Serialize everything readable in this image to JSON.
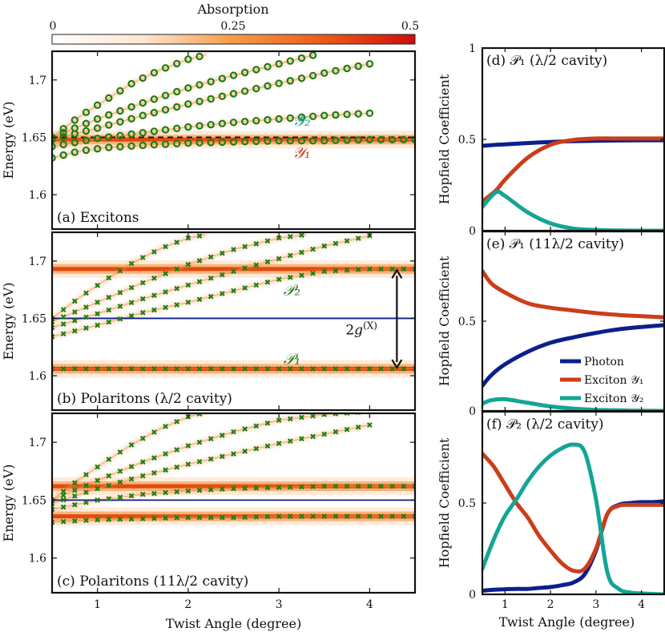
{
  "colorbar": {
    "title": "Absorption",
    "ticks": [
      "0",
      "0.25",
      "0.5"
    ],
    "range": [
      0,
      0.5
    ]
  },
  "colors": {
    "photon": "#0b1f8c",
    "exciton1": "#cc3d1a",
    "exciton2": "#13a596",
    "marker": "#1e7f12"
  },
  "chart_data": [
    {
      "type": "heatmap",
      "panel": "(a) Excitons",
      "xlabel": "",
      "ylabel": "Energy (eV)",
      "xlim": [
        0.5,
        4.5
      ],
      "ylim": [
        1.57,
        1.725
      ],
      "yticks": [
        "1.6",
        "1.65",
        "1.7"
      ],
      "bright_bands_eV": [
        1.648
      ],
      "dashed_line_eV": 1.65,
      "labels": [
        "𝒴₂",
        "𝒴₁"
      ],
      "series": [
        {
          "name": "𝒴₁",
          "x": [
            0.5,
            0.8,
            1.1,
            1.5,
            2.0,
            2.5,
            3.0,
            3.5,
            4.0,
            4.5
          ],
          "y": [
            1.632,
            1.638,
            1.641,
            1.643,
            1.645,
            1.646,
            1.647,
            1.647,
            1.648,
            1.648
          ]
        },
        {
          "x": [
            0.5,
            1.0,
            1.5,
            2.0,
            2.5,
            3.0,
            3.5,
            4.0
          ],
          "y": [
            1.642,
            1.649,
            1.654,
            1.659,
            1.663,
            1.666,
            1.669,
            1.671
          ]
        },
        {
          "x": [
            0.5,
            1.0,
            1.5,
            2.0,
            2.5,
            3.0,
            3.5,
            4.0
          ],
          "y": [
            1.648,
            1.658,
            1.669,
            1.679,
            1.688,
            1.697,
            1.706,
            1.714
          ]
        },
        {
          "x": [
            0.5,
            1.0,
            1.5,
            2.0,
            2.5,
            3.0,
            3.4
          ],
          "y": [
            1.65,
            1.666,
            1.68,
            1.693,
            1.704,
            1.714,
            1.722
          ]
        },
        {
          "x": [
            0.5,
            0.8,
            1.1,
            1.4,
            1.7,
            2.0,
            2.2
          ],
          "y": [
            1.65,
            1.668,
            1.683,
            1.698,
            1.709,
            1.718,
            1.722
          ]
        }
      ]
    },
    {
      "type": "heatmap",
      "panel": "(b) Polaritons (λ/2 cavity)",
      "xlabel": "",
      "ylabel": "Energy (eV)",
      "xlim": [
        0.5,
        4.5
      ],
      "ylim": [
        1.57,
        1.725
      ],
      "yticks": [
        "1.6",
        "1.65",
        "1.7"
      ],
      "bright_bands_eV": [
        1.606,
        1.693
      ],
      "photon_line_eV": 1.65,
      "annotation": "2g^(X)",
      "labels": [
        "𝒫₂",
        "𝒫₁"
      ],
      "series": [
        {
          "name": "𝒫₁",
          "x": [
            0.5,
            1.0,
            1.5,
            2.0,
            2.5,
            3.0,
            3.5,
            4.0,
            4.5
          ],
          "y": [
            1.606,
            1.606,
            1.606,
            1.606,
            1.606,
            1.606,
            1.606,
            1.606,
            1.606
          ]
        },
        {
          "name": "𝒫₂",
          "x": [
            0.5,
            1.0,
            1.5,
            2.0,
            2.5,
            3.0,
            3.5,
            4.0,
            4.5
          ],
          "y": [
            1.634,
            1.644,
            1.655,
            1.664,
            1.674,
            1.684,
            1.691,
            1.693,
            1.693
          ]
        },
        {
          "x": [
            0.5,
            1.0,
            1.5,
            2.0,
            2.5,
            3.0,
            3.5,
            4.0
          ],
          "y": [
            1.642,
            1.654,
            1.667,
            1.679,
            1.691,
            1.702,
            1.713,
            1.722
          ]
        },
        {
          "x": [
            0.5,
            1.0,
            1.5,
            2.0,
            2.5,
            3.0,
            3.3
          ],
          "y": [
            1.647,
            1.664,
            1.681,
            1.697,
            1.71,
            1.72,
            1.723
          ]
        },
        {
          "x": [
            0.5,
            0.8,
            1.1,
            1.4,
            1.7,
            2.0,
            2.2
          ],
          "y": [
            1.65,
            1.668,
            1.684,
            1.699,
            1.711,
            1.72,
            1.723
          ]
        }
      ]
    },
    {
      "type": "heatmap",
      "panel": "(c) Polaritons (11λ/2 cavity)",
      "xlabel": "Twist Angle (degree)",
      "ylabel": "Energy (eV)",
      "xlim": [
        0.5,
        4.5
      ],
      "ylim": [
        1.57,
        1.725
      ],
      "xticks": [
        "1",
        "2",
        "3",
        "4"
      ],
      "yticks": [
        "1.6",
        "1.65",
        "1.7"
      ],
      "bright_bands_eV": [
        1.636,
        1.662
      ],
      "photon_line_eV": 1.65,
      "series": [
        {
          "x": [
            0.5,
            1.0,
            1.5,
            2.0,
            2.5,
            3.0,
            3.5,
            4.0,
            4.5
          ],
          "y": [
            1.631,
            1.633,
            1.634,
            1.635,
            1.635,
            1.636,
            1.636,
            1.636,
            1.636
          ]
        },
        {
          "x": [
            0.5,
            1.0,
            1.5,
            2.0,
            2.5,
            3.0,
            3.5,
            4.0,
            4.5
          ],
          "y": [
            1.642,
            1.65,
            1.655,
            1.658,
            1.66,
            1.661,
            1.662,
            1.662,
            1.662
          ]
        },
        {
          "x": [
            0.5,
            1.0,
            1.5,
            2.0,
            2.5,
            3.0,
            3.5,
            4.0
          ],
          "y": [
            1.647,
            1.66,
            1.671,
            1.681,
            1.69,
            1.699,
            1.707,
            1.715
          ]
        },
        {
          "x": [
            0.5,
            1.0,
            1.5,
            2.0,
            2.5,
            3.0,
            3.5,
            3.9
          ],
          "y": [
            1.65,
            1.667,
            1.683,
            1.697,
            1.709,
            1.719,
            1.724,
            1.726
          ]
        },
        {
          "x": [
            0.5,
            0.8,
            1.1,
            1.4,
            1.7,
            2.0,
            2.2
          ],
          "y": [
            1.65,
            1.668,
            1.684,
            1.699,
            1.712,
            1.722,
            1.726
          ]
        }
      ]
    },
    {
      "type": "line",
      "panel": "(d) 𝒫₁ (λ/2 cavity)",
      "ylabel": "Hopfield Coefficient",
      "xlim": [
        0.5,
        4.5
      ],
      "ylim": [
        0,
        1
      ],
      "yticks": [
        "0",
        "0.5",
        "1"
      ],
      "x": [
        0.5,
        0.8,
        1.0,
        1.5,
        2.0,
        2.5,
        3.0,
        3.5,
        4.0,
        4.5
      ],
      "series": [
        {
          "name": "Photon",
          "values": [
            0.465,
            0.47,
            0.473,
            0.48,
            0.486,
            0.49,
            0.492,
            0.494,
            0.495,
            0.495
          ]
        },
        {
          "name": "Exciton 𝒴₁",
          "values": [
            0.16,
            0.22,
            0.28,
            0.4,
            0.47,
            0.497,
            0.505,
            0.505,
            0.505,
            0.505
          ]
        },
        {
          "name": "Exciton 𝒴₂",
          "values": [
            0.13,
            0.21,
            0.19,
            0.1,
            0.04,
            0.012,
            0.004,
            0.001,
            0.0,
            0.0
          ]
        }
      ]
    },
    {
      "type": "line",
      "panel": "(e) 𝒫₁ (11λ/2 cavity)",
      "ylabel": "Hopfield Coefficient",
      "xlim": [
        0.5,
        4.5
      ],
      "ylim": [
        0,
        1
      ],
      "yticks": [
        "0",
        "0.5"
      ],
      "legend": {
        "position": "bottom-right",
        "entries": [
          "Photon",
          "Exciton 𝒴₁",
          "Exciton 𝒴₂"
        ]
      },
      "x": [
        0.5,
        0.7,
        1.0,
        1.5,
        2.0,
        2.5,
        3.0,
        3.5,
        4.0,
        4.5
      ],
      "series": [
        {
          "name": "Photon",
          "values": [
            0.14,
            0.2,
            0.26,
            0.33,
            0.38,
            0.41,
            0.435,
            0.455,
            0.468,
            0.478
          ]
        },
        {
          "name": "Exciton 𝒴₁",
          "values": [
            0.78,
            0.71,
            0.66,
            0.6,
            0.575,
            0.56,
            0.545,
            0.535,
            0.528,
            0.522
          ]
        },
        {
          "name": "Exciton 𝒴₂",
          "values": [
            0.04,
            0.06,
            0.065,
            0.045,
            0.025,
            0.013,
            0.006,
            0.003,
            0.001,
            0.0
          ]
        }
      ]
    },
    {
      "type": "line",
      "panel": "(f) 𝒫₂ (λ/2 cavity)",
      "xlabel": "Twist Angle (degree)",
      "ylabel": "Hopfield Coefficient",
      "xlim": [
        0.5,
        4.5
      ],
      "ylim": [
        0,
        1
      ],
      "xticks": [
        "1",
        "2",
        "3",
        "4"
      ],
      "yticks": [
        "0",
        "0.5"
      ],
      "x": [
        0.5,
        0.75,
        1.0,
        1.25,
        1.5,
        1.75,
        2.0,
        2.25,
        2.5,
        2.75,
        3.0,
        3.25,
        3.5,
        3.75,
        4.0,
        4.25,
        4.5
      ],
      "series": [
        {
          "name": "Photon",
          "values": [
            0.02,
            0.025,
            0.028,
            0.03,
            0.03,
            0.035,
            0.04,
            0.05,
            0.065,
            0.11,
            0.24,
            0.44,
            0.49,
            0.5,
            0.505,
            0.505,
            0.51
          ]
        },
        {
          "name": "Exciton 𝒴₁",
          "values": [
            0.77,
            0.7,
            0.6,
            0.5,
            0.42,
            0.32,
            0.24,
            0.17,
            0.13,
            0.14,
            0.25,
            0.44,
            0.485,
            0.49,
            0.49,
            0.49,
            0.49
          ]
        },
        {
          "name": "Exciton 𝒴₂",
          "values": [
            0.14,
            0.3,
            0.43,
            0.52,
            0.62,
            0.7,
            0.76,
            0.8,
            0.82,
            0.78,
            0.52,
            0.12,
            0.03,
            0.01,
            0.005,
            0.002,
            0.0
          ]
        }
      ]
    }
  ]
}
